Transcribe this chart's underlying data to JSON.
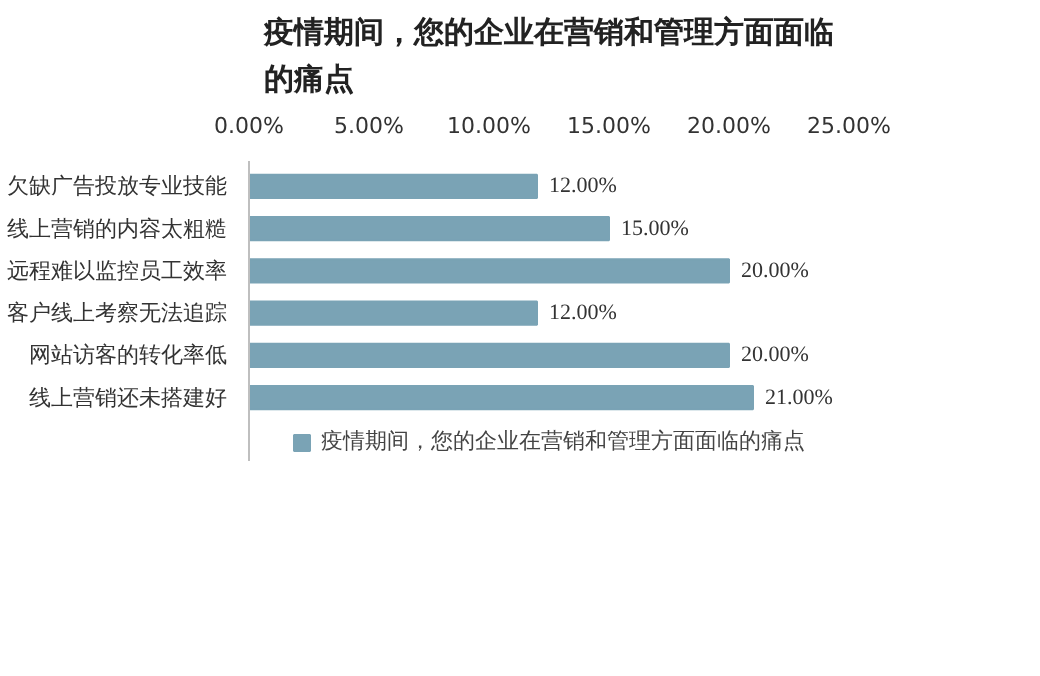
{
  "chart_data": {
    "type": "bar",
    "orientation": "horizontal",
    "title": "疫情期间，您的企业在营销和管理方面面临的痛点",
    "categories": [
      "欠缺广告投放专业技能",
      "线上营销的内容太粗糙",
      "远程难以监控员工效率",
      "客户线上考察无法追踪",
      "网站访客的转化率低",
      "线上营销还未搭建好"
    ],
    "series": [
      {
        "name": "疫情期间，您的企业在营销和管理方面面临的痛点",
        "color": "#7aa3b5",
        "values": [
          12,
          15,
          20,
          12,
          20,
          21
        ],
        "value_labels": [
          "12.00%",
          "15.00%",
          "20.00%",
          "12.00%",
          "20.00%",
          "21.00%"
        ]
      }
    ],
    "xlim": [
      0,
      25
    ],
    "xticks": [
      {
        "value": 0,
        "label": "0.00%"
      },
      {
        "value": 5,
        "label": "5.00%"
      },
      {
        "value": 10,
        "label": "10.00%"
      },
      {
        "value": 15,
        "label": "15.00%"
      },
      {
        "value": 20,
        "label": "20.00%"
      },
      {
        "value": 25,
        "label": "25.00%"
      }
    ],
    "grid": false,
    "legend": "bottom"
  }
}
